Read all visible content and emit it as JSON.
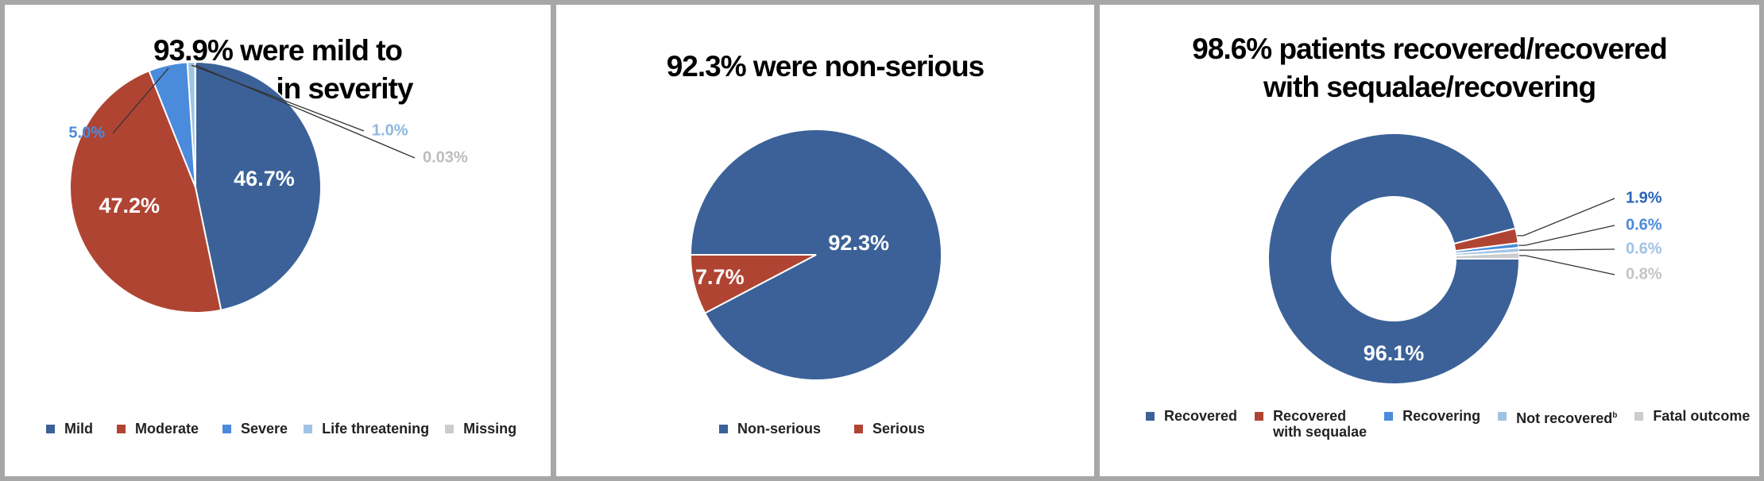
{
  "colors": {
    "dark_blue": "#3b6198",
    "red": "#b04433",
    "mid_blue": "#4a8bdb",
    "light_blue": "#9fc3e3",
    "gray": "#cccccc"
  },
  "chart_data": [
    {
      "type": "pie",
      "title": "93.9% were mild to moderate in severity",
      "title_lines": [
        "93.9% were mild to",
        "moderate in severity"
      ],
      "slices": [
        {
          "name": "Mild",
          "value": 46.7,
          "label": "46.7%",
          "color": "#3b6198"
        },
        {
          "name": "Moderate",
          "value": 47.2,
          "label": "47.2%",
          "color": "#b04433"
        },
        {
          "name": "Severe",
          "value": 5.0,
          "label": "5.0%",
          "color": "#4a8bdb"
        },
        {
          "name": "Life threatening",
          "value": 1.0,
          "label": "1.0%",
          "color": "#9fc3e3"
        },
        {
          "name": "Missing",
          "value": 0.03,
          "label": "0.03%",
          "color": "#cccccc"
        }
      ],
      "legend": [
        "Mild",
        "Moderate",
        "Severe",
        "Life threatening",
        "Missing"
      ]
    },
    {
      "type": "pie",
      "title": "92.3% were non-serious",
      "title_lines": [
        "92.3% were non-serious"
      ],
      "slices": [
        {
          "name": "Non-serious",
          "value": 92.3,
          "label": "92.3%",
          "color": "#3b6198"
        },
        {
          "name": "Serious",
          "value": 7.7,
          "label": "7.7%",
          "color": "#b04433"
        }
      ],
      "legend": [
        "Non-serious",
        "Serious"
      ]
    },
    {
      "type": "donut",
      "title": "98.6% patients recovered/recovered with sequalae/recovering",
      "title_lines": [
        "98.6% patients recovered/recovered",
        "with sequalae/recovering"
      ],
      "slices": [
        {
          "name": "Recovered",
          "value": 96.1,
          "label": "96.1%",
          "color": "#3b6198"
        },
        {
          "name": "Recovered with sequalae",
          "value": 1.9,
          "label": "1.9%",
          "color": "#b04433"
        },
        {
          "name": "Recovering",
          "value": 0.6,
          "label": "0.6%",
          "color": "#4a8bdb"
        },
        {
          "name": "Not recovered",
          "value": 0.6,
          "label": "0.6%",
          "color": "#9fc3e3"
        },
        {
          "name": "Fatal outcome",
          "value": 0.8,
          "label": "0.8%",
          "color": "#cccccc"
        }
      ],
      "legend": [
        {
          "lines": [
            "Recovered"
          ]
        },
        {
          "lines": [
            "Recovered",
            "with sequalae"
          ]
        },
        {
          "lines": [
            "Recovering"
          ]
        },
        {
          "lines": [
            "Not recovered"
          ],
          "sup": "b"
        },
        {
          "lines": [
            "Fatal outcome"
          ]
        }
      ]
    }
  ]
}
